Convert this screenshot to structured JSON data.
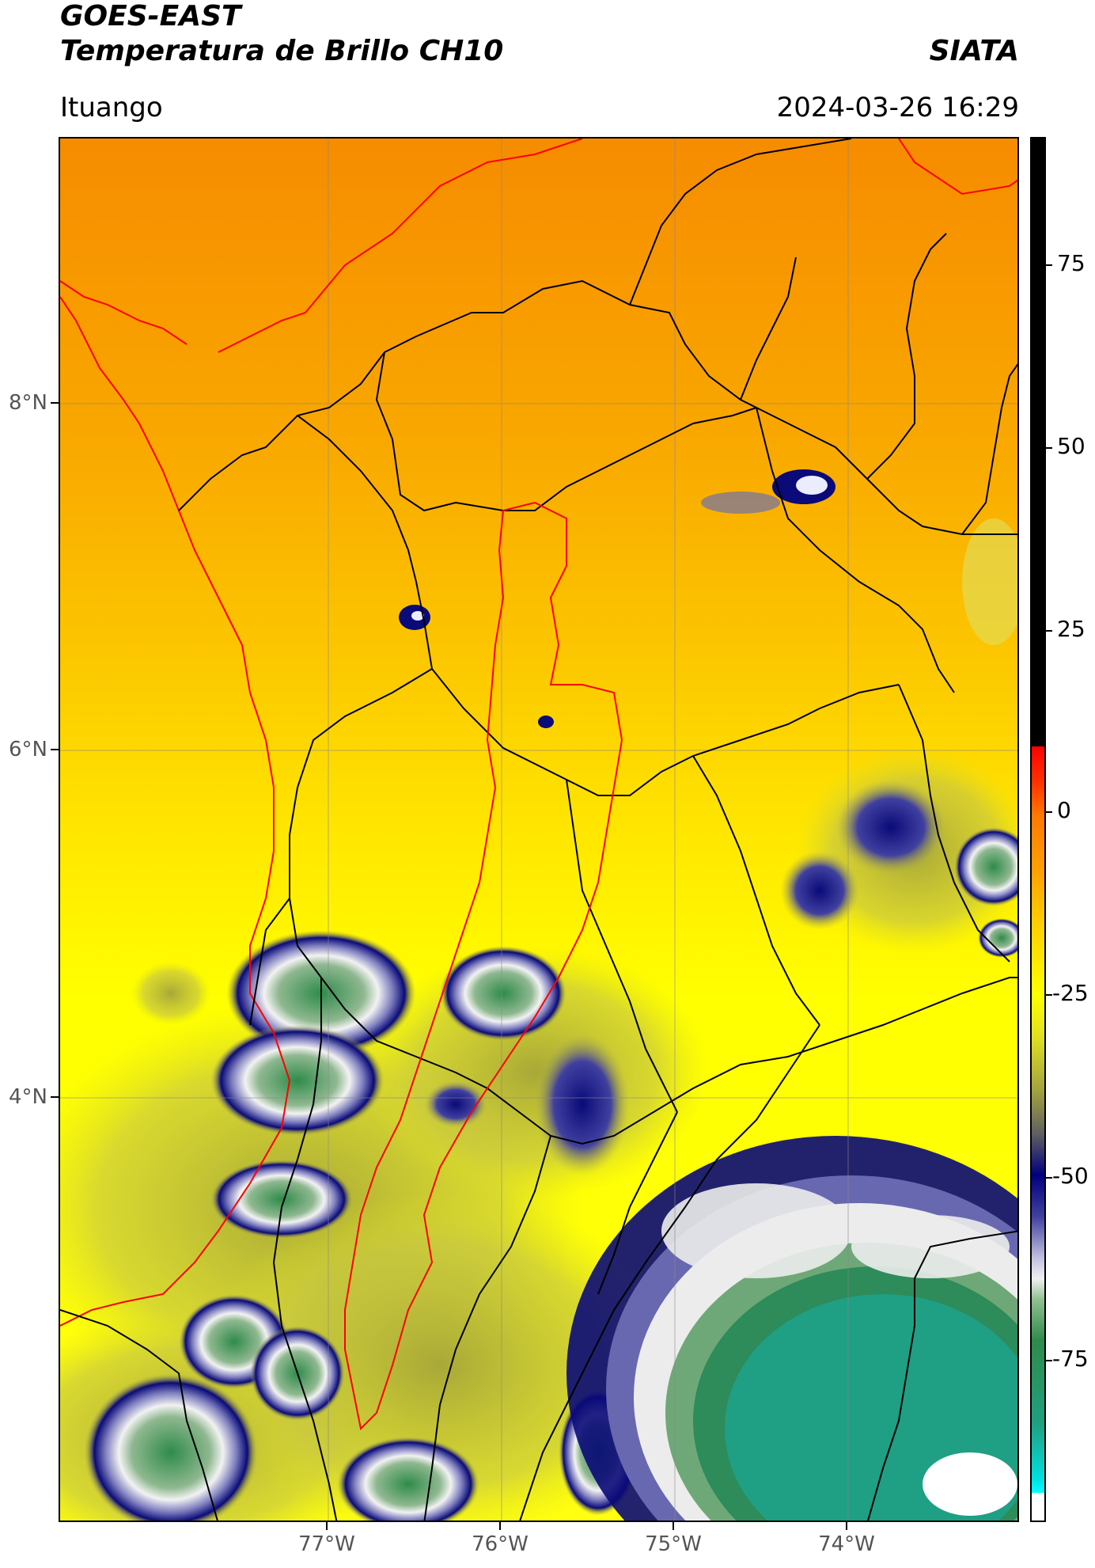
{
  "header": {
    "title_line1": "GOES-EAST",
    "title_line2": "Temperatura de Brillo CH10",
    "brand": "SIATA",
    "location": "Ituango",
    "datetime": "2024-03-26 16:29"
  },
  "map": {
    "lat_labels": [
      "8°N",
      "6°N",
      "4°N"
    ],
    "lon_labels": [
      "77°W",
      "76°W",
      "75°W",
      "74°W"
    ],
    "colors": {
      "orange": "#f59a00",
      "yellow": "#ffff00",
      "olive": "#c8c838",
      "navy": "#0a0a78",
      "white": "#f2f2f2",
      "green": "#2e8b4a",
      "teal": "#1aa38a",
      "border_black": "#000000",
      "border_red": "#ff0000"
    }
  },
  "colorbar": {
    "tick_labels": [
      "75",
      "50",
      "25",
      "0",
      "-25",
      "-50",
      "-75"
    ],
    "colors": [
      "#000000",
      "#ff0000",
      "#ff8c00",
      "#ffff00",
      "#808000",
      "#000080",
      "#ffffff",
      "#228b22",
      "#20b2aa",
      "#00ffff",
      "#ffffff"
    ]
  }
}
